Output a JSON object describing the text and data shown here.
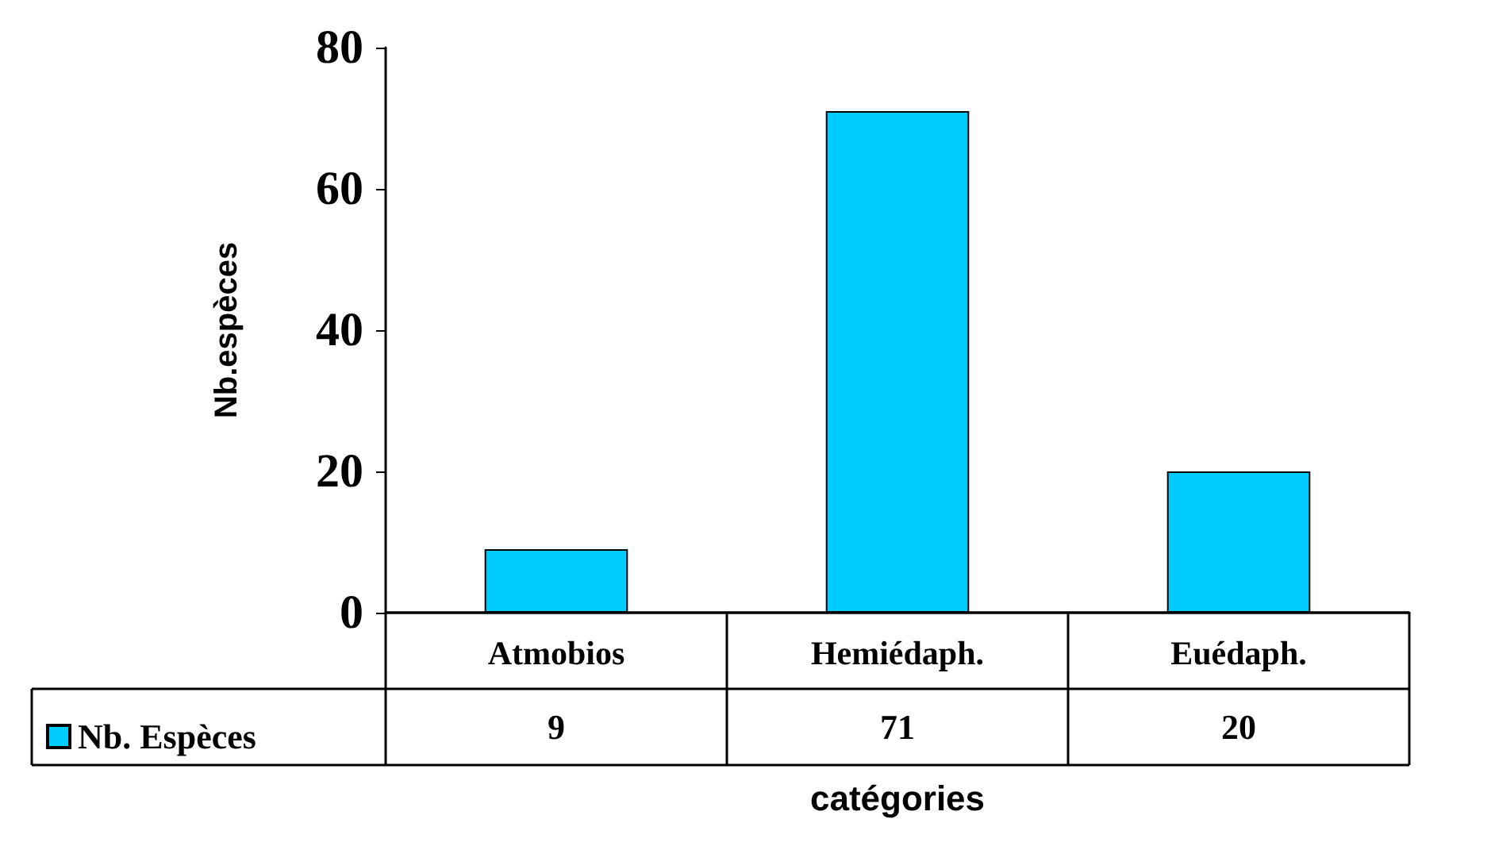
{
  "chart_data": {
    "type": "bar",
    "xlabel": "catégories",
    "ylabel": "Nb.espèces",
    "categories": [
      "Atmobios",
      "Hemiédaph.",
      "Euédaph."
    ],
    "series": [
      {
        "name": "Nb. Espèces",
        "color": "#00ccff",
        "values": [
          9,
          71,
          20
        ]
      }
    ],
    "ylim": [
      0,
      80
    ],
    "yticks": [
      0,
      20,
      40,
      60,
      80
    ],
    "grid": false,
    "legend": "bottom",
    "data_labels": true
  }
}
